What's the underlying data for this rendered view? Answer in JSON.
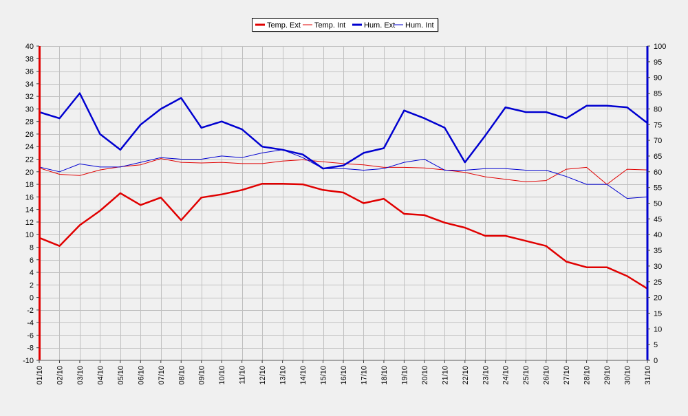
{
  "chart_data": {
    "type": "line",
    "x": [
      "01/10",
      "02/10",
      "03/10",
      "04/10",
      "05/10",
      "06/10",
      "07/10",
      "08/10",
      "09/10",
      "10/10",
      "11/10",
      "12/10",
      "13/10",
      "14/10",
      "15/10",
      "16/10",
      "17/10",
      "18/10",
      "19/10",
      "20/10",
      "21/10",
      "22/10",
      "23/10",
      "24/10",
      "25/10",
      "26/10",
      "27/10",
      "28/10",
      "29/10",
      "30/10",
      "31/10"
    ],
    "ylim_left": [
      -10,
      40
    ],
    "yticks_left": [
      "-10",
      "-8",
      "-6",
      "-4",
      "-2",
      "0",
      "2",
      "4",
      "6",
      "8",
      "10",
      "12",
      "14",
      "16",
      "18",
      "20",
      "22",
      "24",
      "26",
      "28",
      "30",
      "32",
      "34",
      "36",
      "38",
      "40"
    ],
    "ylim_right": [
      0,
      100
    ],
    "yticks_right": [
      "0",
      "5",
      "10",
      "15",
      "20",
      "25",
      "30",
      "35",
      "40",
      "45",
      "50",
      "55",
      "60",
      "65",
      "70",
      "75",
      "80",
      "85",
      "90",
      "95",
      "100"
    ],
    "grid": true,
    "legend_position": "top-center",
    "series": [
      {
        "name": "Temp. Ext",
        "axis": "left",
        "color": "#e00000",
        "width": 2.5,
        "values": [
          9.5,
          8.2,
          11.5,
          13.8,
          16.6,
          14.7,
          15.9,
          12.3,
          15.9,
          16.4,
          17.1,
          18.1,
          18.1,
          18.0,
          17.1,
          16.7,
          15.0,
          15.7,
          13.3,
          13.1,
          11.9,
          11.1,
          9.8,
          9.8,
          9.0,
          8.2,
          5.7,
          4.8,
          4.8,
          3.4,
          1.4
        ]
      },
      {
        "name": "Temp. Int",
        "axis": "left",
        "color": "#e00000",
        "width": 1,
        "values": [
          20.6,
          19.6,
          19.4,
          20.3,
          20.8,
          21.1,
          22.1,
          21.5,
          21.4,
          21.5,
          21.3,
          21.3,
          21.7,
          21.9,
          21.6,
          21.3,
          21.1,
          20.7,
          20.7,
          20.6,
          20.3,
          19.9,
          19.2,
          18.8,
          18.4,
          18.6,
          20.4,
          20.7,
          18.0,
          20.4,
          20.3
        ]
      },
      {
        "name": "Hum. Ext",
        "axis": "right",
        "color": "#0000d0",
        "width": 2.5,
        "values": [
          79,
          77,
          85,
          72,
          67,
          75,
          80,
          83.5,
          74,
          76,
          73.5,
          68,
          67,
          65.5,
          61,
          62,
          66,
          67.5,
          79.5,
          77,
          74,
          63,
          71.5,
          80.5,
          79,
          79,
          77,
          81,
          81,
          80.5,
          75.5
        ]
      },
      {
        "name": "Hum. Int",
        "axis": "right",
        "color": "#0000d0",
        "width": 1,
        "values": [
          61.5,
          60,
          62.5,
          61.5,
          61.5,
          63,
          64.5,
          64,
          64,
          65,
          64.5,
          66,
          67,
          64.5,
          61,
          61,
          60.5,
          61,
          63,
          64,
          60.5,
          60.5,
          61,
          61,
          60.5,
          60.5,
          58.5,
          56,
          56,
          51.5,
          52
        ]
      }
    ]
  }
}
